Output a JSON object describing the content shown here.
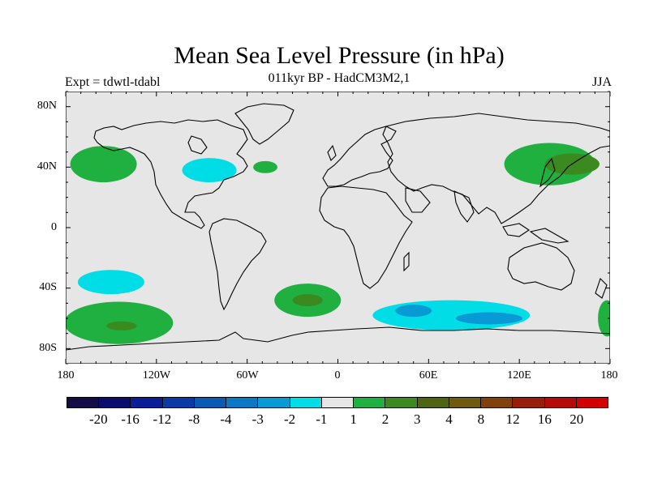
{
  "title": "Mean Sea Level Pressure (in hPa)",
  "subtitle": "011kyr BP - HadCM3M2,1",
  "left_label": "Expt = tdwtl-tdabl",
  "right_label": "JJA",
  "lat_ticks": [
    "80N",
    "40N",
    "0",
    "40S",
    "80S"
  ],
  "lon_ticks": [
    "180",
    "120W",
    "60W",
    "0",
    "60E",
    "120E",
    "180"
  ],
  "colorbar": {
    "colors": [
      "#140c44",
      "#0a0c6e",
      "#0a1e96",
      "#0a3aa6",
      "#0a5ab4",
      "#0a78c4",
      "#089ad4",
      "#00dde6",
      "#e6e6e6",
      "#1fb040",
      "#3a8a20",
      "#4e6410",
      "#6e5a10",
      "#82400c",
      "#961e0a",
      "#b40a0a",
      "#d20000"
    ],
    "labels": [
      "-20",
      "-16",
      "-12",
      "-8",
      "-4",
      "-3",
      "-2",
      "-1",
      "1",
      "2",
      "3",
      "4",
      "8",
      "12",
      "16",
      "20"
    ]
  },
  "chart_data": {
    "type": "heatmap",
    "variable": "Mean Sea Level Pressure difference",
    "units": "hPa",
    "season": "JJA",
    "xlim": [
      -180,
      180
    ],
    "ylim": [
      -90,
      90
    ],
    "anomalies": [
      {
        "lon": -155,
        "lat": 42,
        "level": "2"
      },
      {
        "lon": -85,
        "lat": 38,
        "level": "-1"
      },
      {
        "lon": -48,
        "lat": 40,
        "level": "2"
      },
      {
        "lon": 140,
        "lat": 42,
        "level": "2"
      },
      {
        "lon": 155,
        "lat": 42,
        "level": "3"
      },
      {
        "lon": -150,
        "lat": -36,
        "level": "-1"
      },
      {
        "lon": -145,
        "lat": -63,
        "level": "2"
      },
      {
        "lon": -143,
        "lat": -65,
        "level": "3"
      },
      {
        "lon": -20,
        "lat": -48,
        "level": "2"
      },
      {
        "lon": -20,
        "lat": -48,
        "level": "3"
      },
      {
        "lon": 75,
        "lat": -58,
        "level": "-1"
      },
      {
        "lon": 50,
        "lat": -55,
        "level": "-2"
      },
      {
        "lon": 100,
        "lat": -60,
        "level": "-2"
      },
      {
        "lon": 178,
        "lat": -60,
        "level": "2"
      }
    ]
  }
}
